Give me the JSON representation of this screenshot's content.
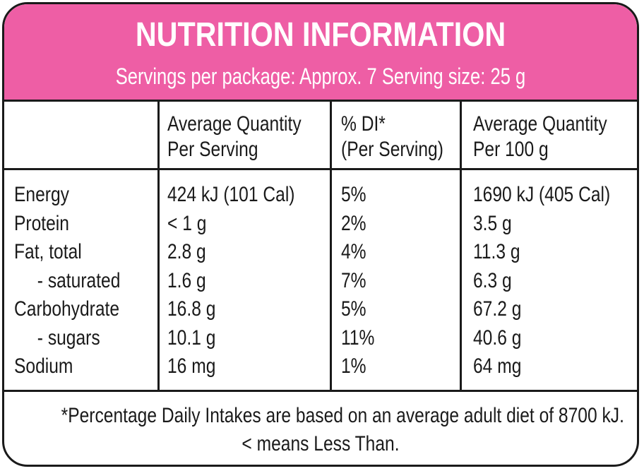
{
  "header": {
    "title": "NUTRITION INFORMATION",
    "subtitle": "Servings per package: Approx. 7  Serving size: 25 g"
  },
  "columns": {
    "avg_serving": [
      "Average Quantity",
      "Per Serving"
    ],
    "di": [
      "% DI*",
      "(Per Serving)"
    ],
    "avg_100g": [
      "Average Quantity",
      "Per 100 g"
    ]
  },
  "rows": [
    {
      "nutrient": "Energy",
      "per_serving": "424 kJ (101 Cal)",
      "di": "5%",
      "per_100g": "1690 kJ (405 Cal)",
      "indent": false
    },
    {
      "nutrient": "Protein",
      "per_serving": "< 1 g",
      "di": "2%",
      "per_100g": "3.5 g",
      "indent": false
    },
    {
      "nutrient": "Fat, total",
      "per_serving": "2.8 g",
      "di": "4%",
      "per_100g": "11.3 g",
      "indent": false
    },
    {
      "nutrient": "- saturated",
      "per_serving": "1.6 g",
      "di": "7%",
      "per_100g": "6.3 g",
      "indent": true
    },
    {
      "nutrient": "Carbohydrate",
      "per_serving": "16.8 g",
      "di": "5%",
      "per_100g": "67.2 g",
      "indent": false
    },
    {
      "nutrient": "- sugars",
      "per_serving": "10.1 g",
      "di": "11%",
      "per_100g": "40.6 g",
      "indent": true
    },
    {
      "nutrient": "Sodium",
      "per_serving": "16 mg",
      "di": "1%",
      "per_100g": "64 mg",
      "indent": false
    }
  ],
  "footer": {
    "line1": "*Percentage Daily Intakes are based on an average adult diet of 8700 kJ.",
    "line2": "< means Less Than."
  },
  "colors": {
    "header_bg": "#ee5ea5",
    "border": "#1a1a1a"
  }
}
